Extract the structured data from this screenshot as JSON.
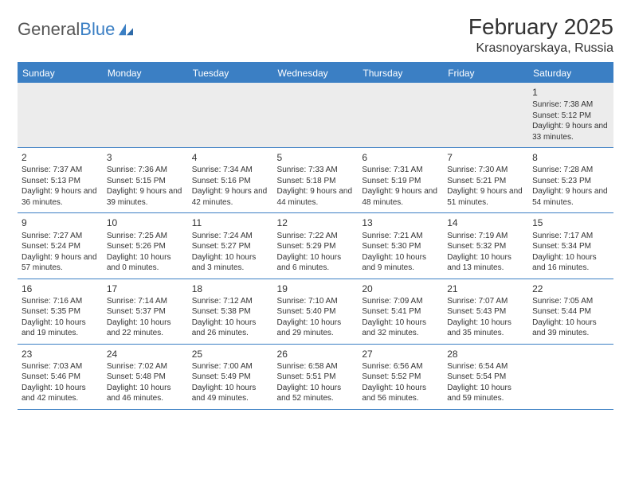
{
  "logo": {
    "text1": "General",
    "text2": "Blue"
  },
  "title": "February 2025",
  "location": "Krasnoyarskaya, Russia",
  "colors": {
    "accent": "#3b7fc4",
    "shade": "#ececec",
    "text": "#333333",
    "bg": "#ffffff"
  },
  "typography": {
    "title_fontsize": 28,
    "location_fontsize": 16,
    "header_fontsize": 12,
    "daynum_fontsize": 12,
    "body_fontsize": 10
  },
  "dayHeaders": [
    "Sunday",
    "Monday",
    "Tuesday",
    "Wednesday",
    "Thursday",
    "Friday",
    "Saturday"
  ],
  "weeks": [
    [
      {
        "day": "",
        "sunrise": "",
        "sunset": "",
        "daylight": ""
      },
      {
        "day": "",
        "sunrise": "",
        "sunset": "",
        "daylight": ""
      },
      {
        "day": "",
        "sunrise": "",
        "sunset": "",
        "daylight": ""
      },
      {
        "day": "",
        "sunrise": "",
        "sunset": "",
        "daylight": ""
      },
      {
        "day": "",
        "sunrise": "",
        "sunset": "",
        "daylight": ""
      },
      {
        "day": "",
        "sunrise": "",
        "sunset": "",
        "daylight": ""
      },
      {
        "day": "1",
        "sunrise": "Sunrise: 7:38 AM",
        "sunset": "Sunset: 5:12 PM",
        "daylight": "Daylight: 9 hours and 33 minutes."
      }
    ],
    [
      {
        "day": "2",
        "sunrise": "Sunrise: 7:37 AM",
        "sunset": "Sunset: 5:13 PM",
        "daylight": "Daylight: 9 hours and 36 minutes."
      },
      {
        "day": "3",
        "sunrise": "Sunrise: 7:36 AM",
        "sunset": "Sunset: 5:15 PM",
        "daylight": "Daylight: 9 hours and 39 minutes."
      },
      {
        "day": "4",
        "sunrise": "Sunrise: 7:34 AM",
        "sunset": "Sunset: 5:16 PM",
        "daylight": "Daylight: 9 hours and 42 minutes."
      },
      {
        "day": "5",
        "sunrise": "Sunrise: 7:33 AM",
        "sunset": "Sunset: 5:18 PM",
        "daylight": "Daylight: 9 hours and 44 minutes."
      },
      {
        "day": "6",
        "sunrise": "Sunrise: 7:31 AM",
        "sunset": "Sunset: 5:19 PM",
        "daylight": "Daylight: 9 hours and 48 minutes."
      },
      {
        "day": "7",
        "sunrise": "Sunrise: 7:30 AM",
        "sunset": "Sunset: 5:21 PM",
        "daylight": "Daylight: 9 hours and 51 minutes."
      },
      {
        "day": "8",
        "sunrise": "Sunrise: 7:28 AM",
        "sunset": "Sunset: 5:23 PM",
        "daylight": "Daylight: 9 hours and 54 minutes."
      }
    ],
    [
      {
        "day": "9",
        "sunrise": "Sunrise: 7:27 AM",
        "sunset": "Sunset: 5:24 PM",
        "daylight": "Daylight: 9 hours and 57 minutes."
      },
      {
        "day": "10",
        "sunrise": "Sunrise: 7:25 AM",
        "sunset": "Sunset: 5:26 PM",
        "daylight": "Daylight: 10 hours and 0 minutes."
      },
      {
        "day": "11",
        "sunrise": "Sunrise: 7:24 AM",
        "sunset": "Sunset: 5:27 PM",
        "daylight": "Daylight: 10 hours and 3 minutes."
      },
      {
        "day": "12",
        "sunrise": "Sunrise: 7:22 AM",
        "sunset": "Sunset: 5:29 PM",
        "daylight": "Daylight: 10 hours and 6 minutes."
      },
      {
        "day": "13",
        "sunrise": "Sunrise: 7:21 AM",
        "sunset": "Sunset: 5:30 PM",
        "daylight": "Daylight: 10 hours and 9 minutes."
      },
      {
        "day": "14",
        "sunrise": "Sunrise: 7:19 AM",
        "sunset": "Sunset: 5:32 PM",
        "daylight": "Daylight: 10 hours and 13 minutes."
      },
      {
        "day": "15",
        "sunrise": "Sunrise: 7:17 AM",
        "sunset": "Sunset: 5:34 PM",
        "daylight": "Daylight: 10 hours and 16 minutes."
      }
    ],
    [
      {
        "day": "16",
        "sunrise": "Sunrise: 7:16 AM",
        "sunset": "Sunset: 5:35 PM",
        "daylight": "Daylight: 10 hours and 19 minutes."
      },
      {
        "day": "17",
        "sunrise": "Sunrise: 7:14 AM",
        "sunset": "Sunset: 5:37 PM",
        "daylight": "Daylight: 10 hours and 22 minutes."
      },
      {
        "day": "18",
        "sunrise": "Sunrise: 7:12 AM",
        "sunset": "Sunset: 5:38 PM",
        "daylight": "Daylight: 10 hours and 26 minutes."
      },
      {
        "day": "19",
        "sunrise": "Sunrise: 7:10 AM",
        "sunset": "Sunset: 5:40 PM",
        "daylight": "Daylight: 10 hours and 29 minutes."
      },
      {
        "day": "20",
        "sunrise": "Sunrise: 7:09 AM",
        "sunset": "Sunset: 5:41 PM",
        "daylight": "Daylight: 10 hours and 32 minutes."
      },
      {
        "day": "21",
        "sunrise": "Sunrise: 7:07 AM",
        "sunset": "Sunset: 5:43 PM",
        "daylight": "Daylight: 10 hours and 35 minutes."
      },
      {
        "day": "22",
        "sunrise": "Sunrise: 7:05 AM",
        "sunset": "Sunset: 5:44 PM",
        "daylight": "Daylight: 10 hours and 39 minutes."
      }
    ],
    [
      {
        "day": "23",
        "sunrise": "Sunrise: 7:03 AM",
        "sunset": "Sunset: 5:46 PM",
        "daylight": "Daylight: 10 hours and 42 minutes."
      },
      {
        "day": "24",
        "sunrise": "Sunrise: 7:02 AM",
        "sunset": "Sunset: 5:48 PM",
        "daylight": "Daylight: 10 hours and 46 minutes."
      },
      {
        "day": "25",
        "sunrise": "Sunrise: 7:00 AM",
        "sunset": "Sunset: 5:49 PM",
        "daylight": "Daylight: 10 hours and 49 minutes."
      },
      {
        "day": "26",
        "sunrise": "Sunrise: 6:58 AM",
        "sunset": "Sunset: 5:51 PM",
        "daylight": "Daylight: 10 hours and 52 minutes."
      },
      {
        "day": "27",
        "sunrise": "Sunrise: 6:56 AM",
        "sunset": "Sunset: 5:52 PM",
        "daylight": "Daylight: 10 hours and 56 minutes."
      },
      {
        "day": "28",
        "sunrise": "Sunrise: 6:54 AM",
        "sunset": "Sunset: 5:54 PM",
        "daylight": "Daylight: 10 hours and 59 minutes."
      },
      {
        "day": "",
        "sunrise": "",
        "sunset": "",
        "daylight": ""
      }
    ]
  ]
}
